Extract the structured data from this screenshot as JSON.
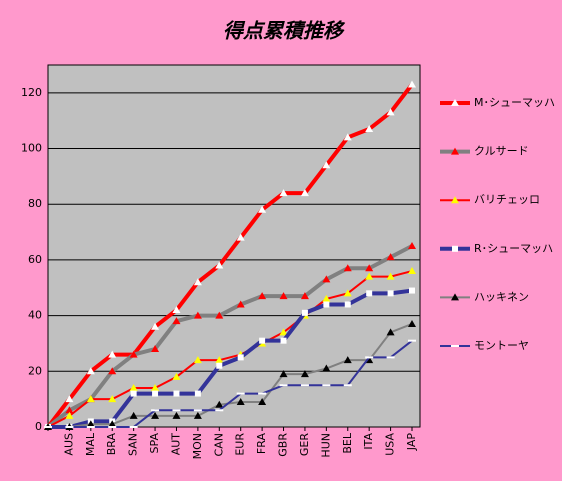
{
  "chart_data": {
    "type": "line",
    "title": "得点累積推移",
    "categories": [
      null,
      "AUS",
      "MAL",
      "BRA",
      "SAN",
      "SPA",
      "AUT",
      "MON",
      "CAN",
      "EUR",
      "FRA",
      "GBR",
      "GER",
      "HUN",
      "BEL",
      "ITA",
      "USA",
      "JAP"
    ],
    "series": [
      {
        "name": "M･シューマッハ",
        "color": "#ff0000",
        "marker_color": "#ffffff",
        "marker": "triangle",
        "width": 4,
        "values": [
          0,
          10,
          20,
          26,
          26,
          36,
          42,
          52,
          58,
          68,
          78,
          84,
          84,
          94,
          104,
          107,
          113,
          123
        ]
      },
      {
        "name": "クルサード",
        "color": "#808080",
        "marker_color": "#ff0000",
        "marker": "triangle",
        "width": 4,
        "values": [
          0,
          6,
          10,
          20,
          26,
          28,
          38,
          40,
          40,
          44,
          47,
          47,
          47,
          53,
          57,
          57,
          61,
          65
        ]
      },
      {
        "name": "バリチェッロ",
        "color": "#ff0000",
        "marker_color": "#ffff00",
        "marker": "triangle",
        "width": 2,
        "values": [
          0,
          4,
          10,
          10,
          14,
          14,
          18,
          24,
          24,
          26,
          30,
          34,
          40,
          46,
          48,
          54,
          54,
          56
        ]
      },
      {
        "name": "R･シューマッハ",
        "color": "#333399",
        "marker_color": "#ffffff",
        "marker": "square",
        "width": 4,
        "values": [
          0,
          0,
          2,
          2,
          12,
          12,
          12,
          12,
          22,
          25,
          31,
          31,
          41,
          44,
          44,
          48,
          48,
          49
        ]
      },
      {
        "name": "ハッキネン",
        "color": "#808080",
        "marker_color": "#000000",
        "marker": "triangle",
        "width": 2,
        "values": [
          0,
          0,
          1,
          1,
          4,
          4,
          4,
          4,
          8,
          9,
          9,
          19,
          19,
          21,
          24,
          24,
          34,
          37
        ]
      },
      {
        "name": "モントーヤ",
        "color": "#333399",
        "marker_color": "#ffffff",
        "marker": "dash",
        "width": 2,
        "values": [
          0,
          0,
          0,
          0,
          0,
          6,
          6,
          6,
          6,
          12,
          12,
          15,
          15,
          15,
          15,
          25,
          25,
          31
        ]
      }
    ],
    "ylim": [
      0,
      130
    ],
    "yticks": [
      0,
      20,
      40,
      60,
      80,
      100,
      120
    ],
    "grid": true,
    "legend": "right"
  }
}
